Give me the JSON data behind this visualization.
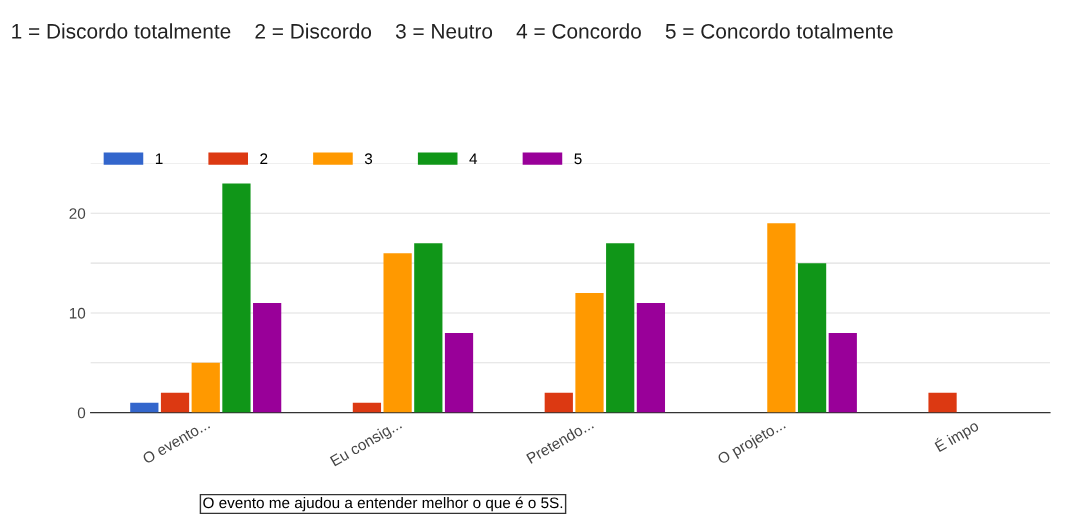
{
  "chart_data": {
    "type": "bar",
    "title": "1 = Discordo totalmente    2 = Discordo    3 = Neutro    4 = Concordo    5 = Concordo totalmente",
    "categories": [
      "O evento...",
      "Eu consig...",
      "Pretendo...",
      "O projeto...",
      "É impo"
    ],
    "series": [
      {
        "name": "1",
        "color": "#3366cc",
        "values": [
          1,
          0,
          0,
          0,
          0
        ]
      },
      {
        "name": "2",
        "color": "#dc3912",
        "values": [
          2,
          1,
          2,
          0,
          2
        ]
      },
      {
        "name": "3",
        "color": "#ff9900",
        "values": [
          5,
          16,
          12,
          19,
          null
        ]
      },
      {
        "name": "4",
        "color": "#109618",
        "values": [
          23,
          17,
          17,
          15,
          null
        ]
      },
      {
        "name": "5",
        "color": "#990099",
        "values": [
          11,
          8,
          11,
          8,
          null
        ]
      }
    ],
    "ylim": [
      0,
      25
    ],
    "yticks": [
      0,
      {
        "value": 5,
        "label": null
      },
      10,
      {
        "value": 15,
        "label": null
      },
      20,
      {
        "value": 25,
        "label": null
      }
    ],
    "grid": "y",
    "legend": "top left",
    "annotations": [
      "O evento me ajudou a entender melhor o que é o 5S."
    ]
  }
}
